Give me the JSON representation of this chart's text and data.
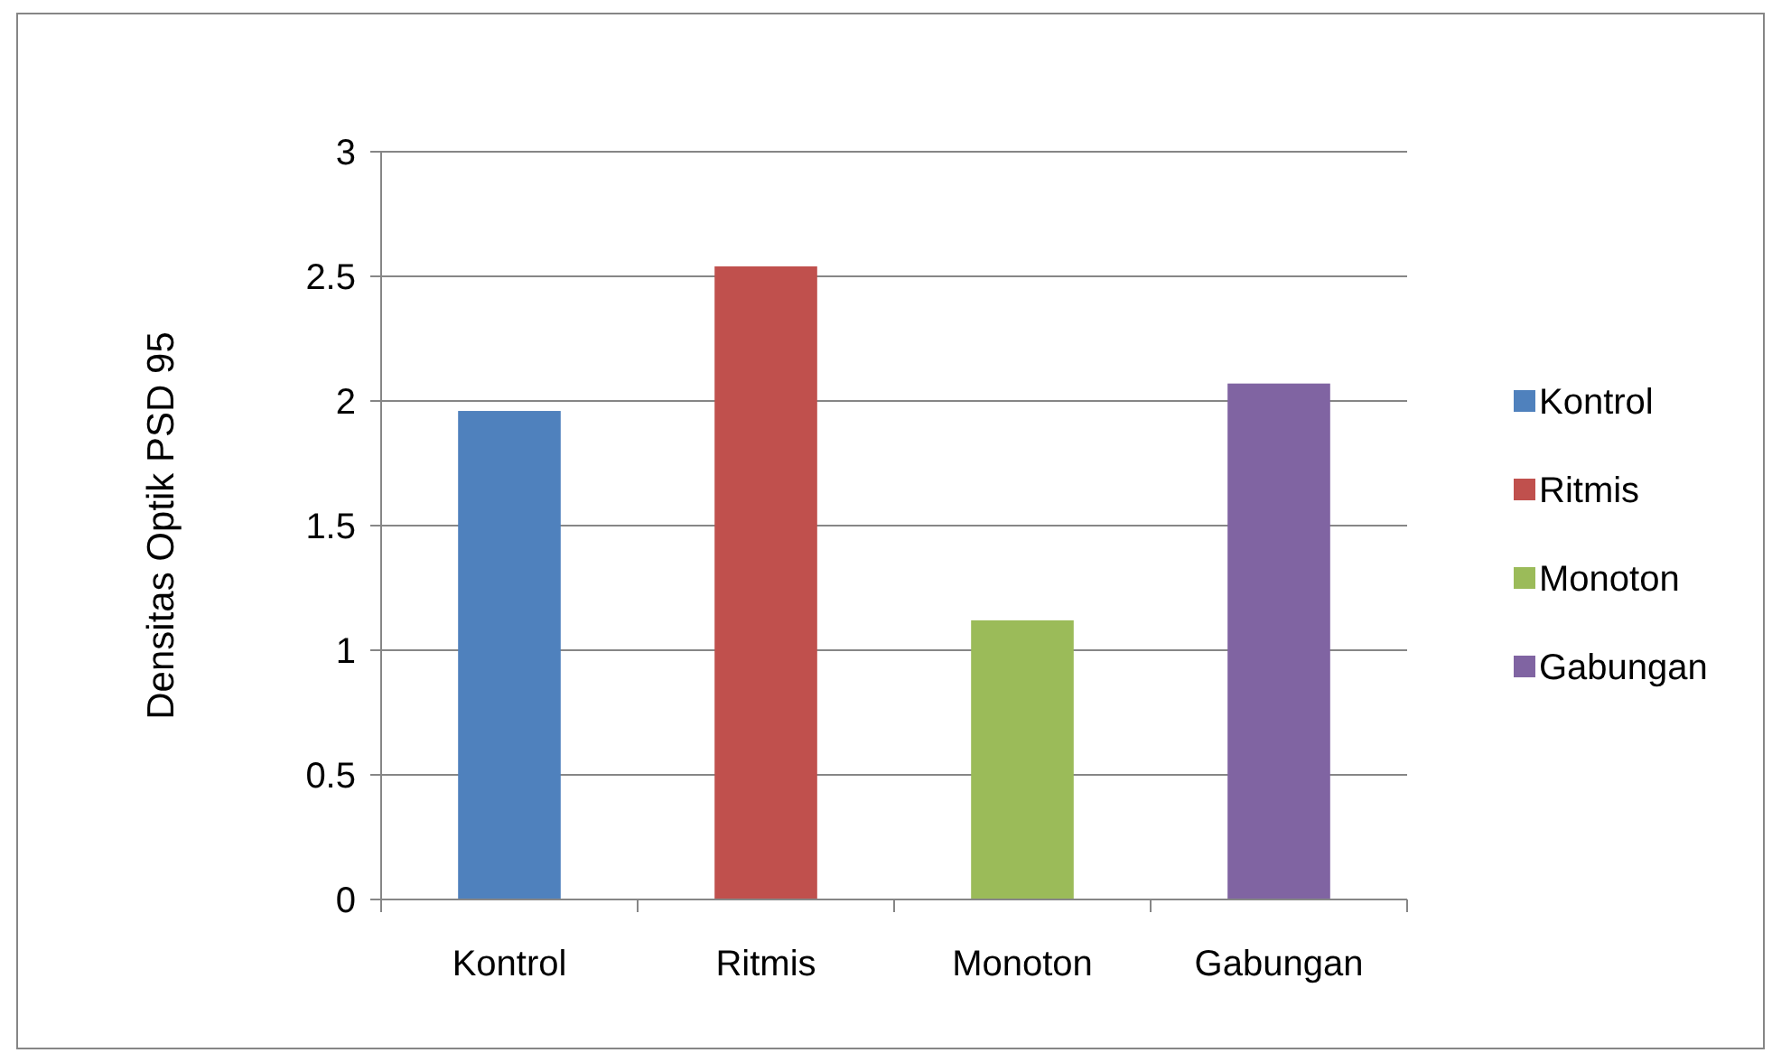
{
  "chart_data": {
    "type": "bar",
    "ylabel": "Densitas Optik PSD 95",
    "categories": [
      "Kontrol",
      "Ritmis",
      "Monoton",
      "Gabungan"
    ],
    "stacked": true,
    "series": [
      {
        "name": "Kontrol",
        "color": "#4f81bd",
        "values": [
          1.96,
          null,
          null,
          null
        ]
      },
      {
        "name": "Ritmis",
        "color": "#c0504d",
        "values": [
          null,
          2.54,
          null,
          null
        ]
      },
      {
        "name": "Monoton",
        "color": "#9bbb59",
        "values": [
          null,
          null,
          1.12,
          null
        ]
      },
      {
        "name": "Gabungan",
        "color": "#8064a2",
        "values": [
          null,
          null,
          null,
          2.07
        ]
      }
    ],
    "ylim": [
      0,
      3
    ],
    "yticks": [
      0,
      0.5,
      1,
      1.5,
      2,
      2.5,
      3
    ],
    "grid": "y",
    "legend": "right"
  }
}
